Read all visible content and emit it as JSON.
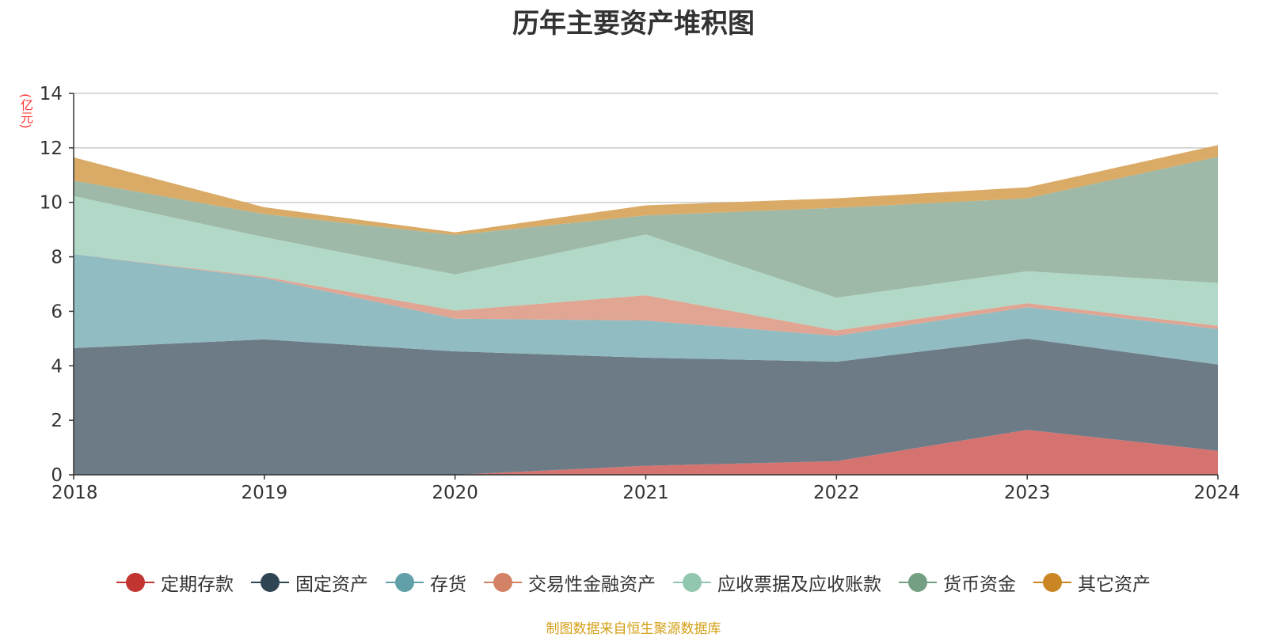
{
  "header": {
    "title": "历年主要资产堆积图"
  },
  "footer": {
    "source": "制图数据来自恒生聚源数据库"
  },
  "chart_data": {
    "type": "area",
    "stacked": true,
    "title": "历年主要资产堆积图",
    "ylabel": "(亿元)",
    "xlabel": "",
    "x": [
      "2018",
      "2019",
      "2020",
      "2021",
      "2022",
      "2023",
      "2024"
    ],
    "ylim": [
      0,
      14
    ],
    "yticks": [
      0,
      2,
      4,
      6,
      8,
      10,
      12,
      14
    ],
    "grid": true,
    "legend": "bottom",
    "series": [
      {
        "name": "定期存款",
        "color": "#c23531",
        "fill": "#d47370",
        "values": [
          0,
          0,
          0,
          0.33,
          0.5,
          1.65,
          0.88
        ]
      },
      {
        "name": "固定资产",
        "color": "#2f4554",
        "fill": "#6d7b86",
        "values": [
          4.65,
          4.97,
          4.53,
          3.97,
          3.65,
          3.35,
          3.17
        ]
      },
      {
        "name": "存货",
        "color": "#61a0a8",
        "fill": "#90bcc2",
        "values": [
          3.45,
          2.25,
          1.2,
          1.36,
          0.95,
          1.15,
          1.3
        ]
      },
      {
        "name": "交易性金融资产",
        "color": "#d48265",
        "fill": "#e0a593",
        "values": [
          0,
          0.05,
          0.3,
          0.93,
          0.2,
          0.15,
          0.12
        ]
      },
      {
        "name": "应收票据及应收账款",
        "color": "#91c7ae",
        "fill": "#b2d9c8",
        "values": [
          2.13,
          1.45,
          1.32,
          2.23,
          1.2,
          1.17,
          1.57
        ]
      },
      {
        "name": "货币资金",
        "color": "#749f83",
        "fill": "#9eb9a7",
        "values": [
          0.57,
          0.85,
          1.45,
          0.7,
          3.3,
          2.68,
          4.63
        ]
      },
      {
        "name": "其它资产",
        "color": "#ca8622",
        "fill": "#daab66",
        "values": [
          0.85,
          0.25,
          0.1,
          0.37,
          0.35,
          0.4,
          0.43
        ]
      }
    ]
  }
}
